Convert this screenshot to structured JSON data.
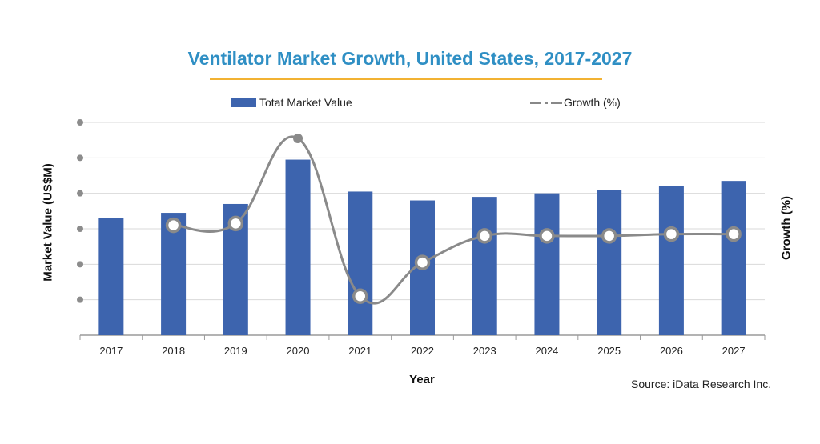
{
  "title": "Ventilator Market Growth, United States, 2017-2027",
  "source": "Source: iData Research Inc.",
  "colors": {
    "bar": "#3d64ae",
    "line": "#8a8a8a",
    "title": "#2f8fc4",
    "underline": "#f2b233"
  },
  "chart_data": {
    "type": "bar",
    "categories": [
      "2017",
      "2018",
      "2019",
      "2020",
      "2021",
      "2022",
      "2023",
      "2024",
      "2025",
      "2026",
      "2027"
    ],
    "xlabel": "Year",
    "ylabel": "Market Value (US$M)",
    "y2label": "Growth (%)",
    "legend": {
      "bar": "Totat Market Value",
      "line": "Growth (%)"
    },
    "legend_position": "top",
    "grid": true,
    "tick_labels_shown": false,
    "ylim": [
      0,
      6
    ],
    "y2lim": [
      0,
      6
    ],
    "series": [
      {
        "name": "Totat Market Value",
        "type": "bar",
        "values": [
          3.3,
          3.45,
          3.7,
          4.95,
          4.05,
          3.8,
          3.9,
          4.0,
          4.1,
          4.2,
          4.35
        ]
      },
      {
        "name": "Growth (%)",
        "type": "line",
        "axis": "right",
        "smooth": true,
        "values": [
          null,
          3.1,
          3.15,
          5.55,
          1.1,
          2.05,
          2.8,
          2.8,
          2.8,
          2.85,
          2.85
        ],
        "point_style": [
          "hollow",
          "hollow",
          "filled",
          "hollow",
          "hollow",
          "hollow",
          "hollow",
          "hollow",
          "hollow",
          "hollow"
        ]
      }
    ]
  }
}
